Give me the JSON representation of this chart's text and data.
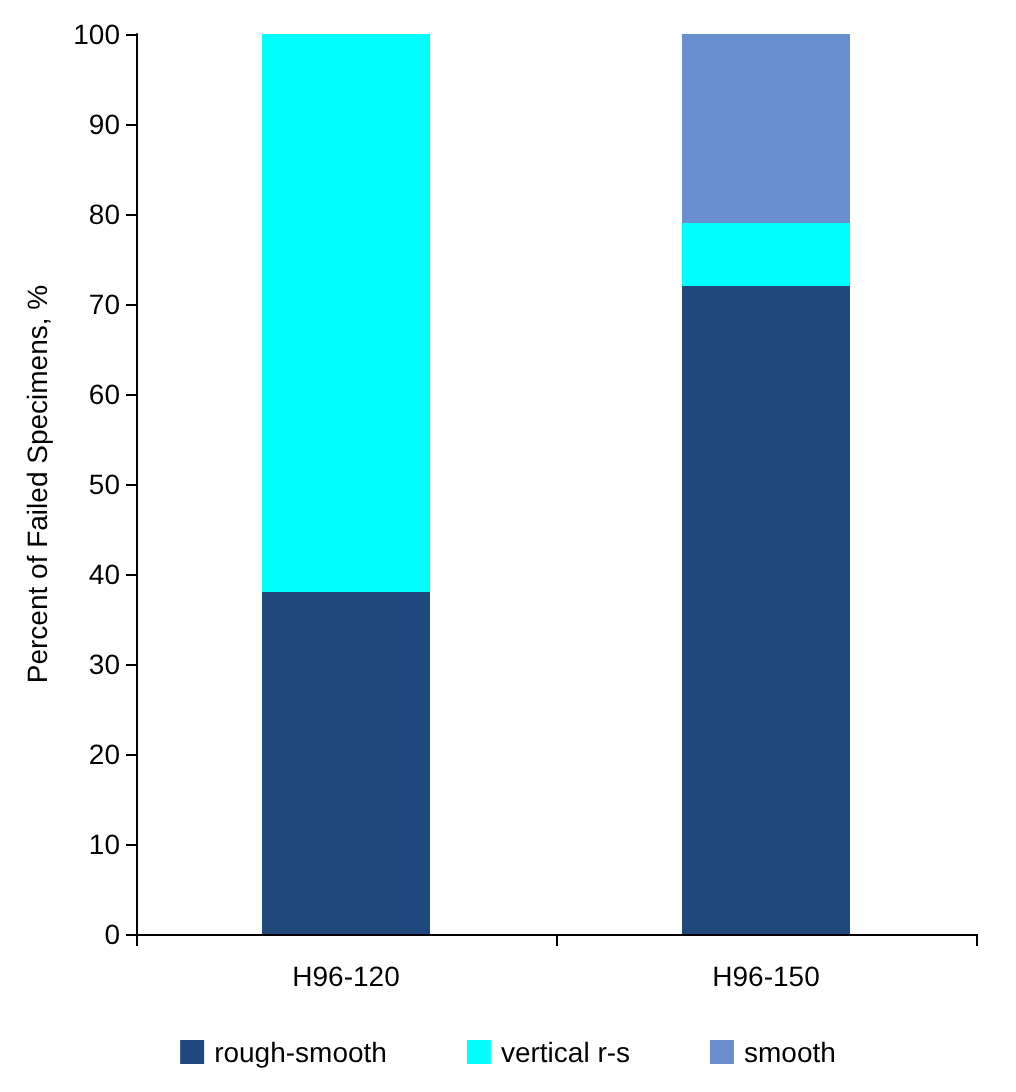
{
  "chart_data": {
    "type": "bar",
    "stacked": true,
    "ylabel": "Percent of Failed Specimens, %",
    "categories": [
      "H96-120",
      "H96-150"
    ],
    "series": [
      {
        "name": "rough-smooth",
        "color": "#1f497d",
        "values": [
          38,
          72
        ]
      },
      {
        "name": "vertical r-s",
        "color": "#00ffff",
        "values": [
          62,
          7
        ]
      },
      {
        "name": "smooth",
        "color": "#6a8fd0",
        "values": [
          0,
          21
        ]
      }
    ],
    "ylim": [
      0,
      100
    ],
    "yticks": [
      0,
      10,
      20,
      30,
      40,
      50,
      60,
      70,
      80,
      90,
      100
    ],
    "grid": false,
    "legend": "bottom"
  }
}
